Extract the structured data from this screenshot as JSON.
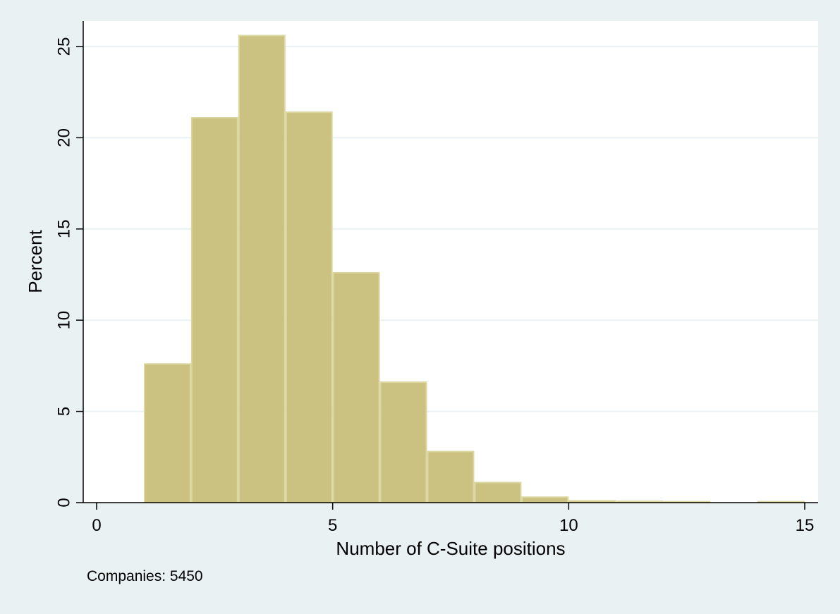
{
  "chart_data": {
    "type": "bar",
    "subtype": "histogram",
    "xlabel": "Number of C-Suite positions",
    "ylabel": "Percent",
    "xlim": [
      0,
      15
    ],
    "ylim": [
      0,
      26
    ],
    "xticks": [
      0,
      5,
      10,
      15
    ],
    "yticks": [
      0,
      5,
      10,
      15,
      20,
      25
    ],
    "grid": true,
    "bin_width": 1,
    "bins": [
      {
        "x0": 1,
        "x1": 2,
        "value": 7.6
      },
      {
        "x0": 2,
        "x1": 3,
        "value": 21.1
      },
      {
        "x0": 3,
        "x1": 4,
        "value": 25.6
      },
      {
        "x0": 4,
        "x1": 5,
        "value": 21.4
      },
      {
        "x0": 5,
        "x1": 6,
        "value": 12.6
      },
      {
        "x0": 6,
        "x1": 7,
        "value": 6.6
      },
      {
        "x0": 7,
        "x1": 8,
        "value": 2.8
      },
      {
        "x0": 8,
        "x1": 9,
        "value": 1.1
      },
      {
        "x0": 9,
        "x1": 10,
        "value": 0.3
      },
      {
        "x0": 10,
        "x1": 11,
        "value": 0.1
      },
      {
        "x0": 11,
        "x1": 12,
        "value": 0.07
      },
      {
        "x0": 12,
        "x1": 13,
        "value": 0.05
      },
      {
        "x0": 14,
        "x1": 15,
        "value": 0.05
      }
    ],
    "note": "Companies: 5450"
  },
  "colors": {
    "background": "#eaf1f3",
    "plot_area": "#ffffff",
    "bar_fill": "#cbc180",
    "bar_edge": "#dcd7a0",
    "grid": "#eaf1f3",
    "axis": "#000000"
  }
}
